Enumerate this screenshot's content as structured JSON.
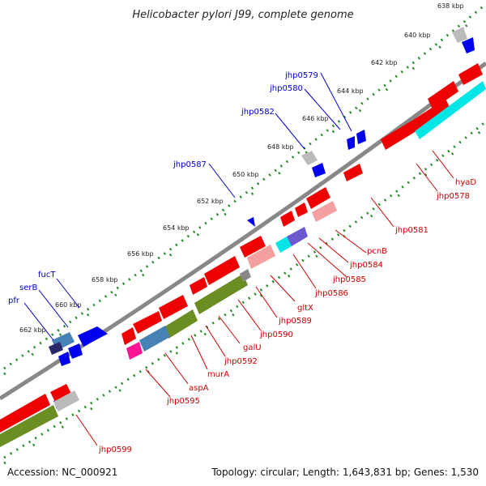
{
  "title": "Helicobacter pylori J99, complete genome",
  "footer": {
    "accession": "Accession: NC_000921",
    "summary": "Topology: circular; Length: 1,643,831 bp; Genes: 1,530"
  },
  "ticks": [
    "638 kbp",
    "640 kbp",
    "642 kbp",
    "644 kbp",
    "646 kbp",
    "648 kbp",
    "650 kbp",
    "652 kbp",
    "654 kbp",
    "656 kbp",
    "658 kbp",
    "660 kbp",
    "662 kbp"
  ],
  "labels_top": [
    "jhp0579",
    "jhp0580",
    "jhp0582",
    "jhp0587",
    "fucT",
    "serB",
    "pfr"
  ],
  "labels_bottom": [
    "hyaD",
    "jhp0578",
    "jhp0581",
    "pcnB",
    "jhp0584",
    "jhp0585",
    "jhp0586",
    "gltX",
    "jhp0589",
    "jhp0590",
    "galU",
    "jhp0592",
    "murA",
    "aspA",
    "jhp0595",
    "jhp0599"
  ],
  "colors": {
    "forward_cds": "#0000ee",
    "reverse_cds": "#ee0000",
    "pseudo": "#bbbbbb",
    "track_a": "#00e5e5",
    "track_b": "#6b8e23",
    "track_c": "#4682b4",
    "track_d": "#ff1493",
    "backbone": "#888888",
    "ruler": "#228b22"
  }
}
